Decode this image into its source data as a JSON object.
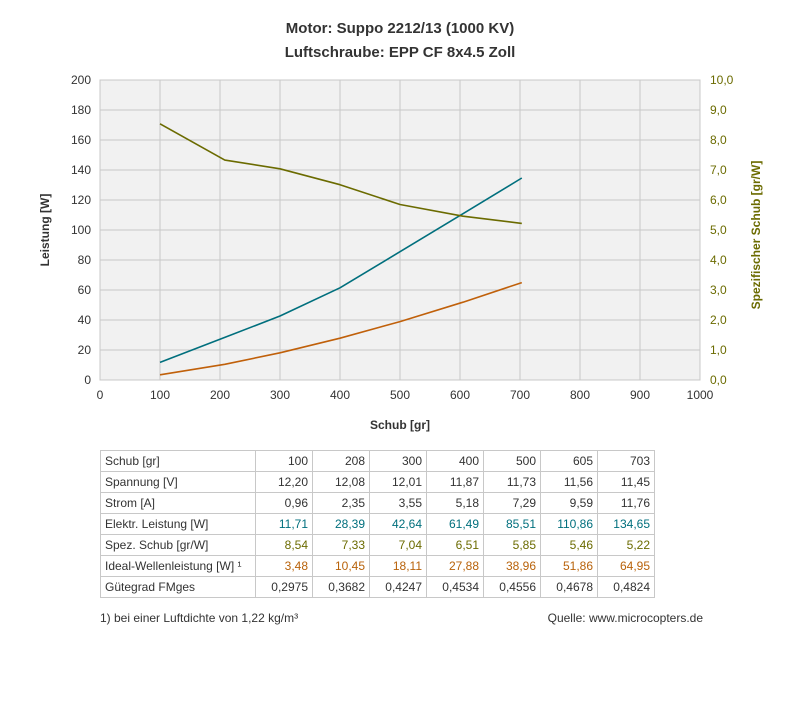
{
  "chart_data": {
    "type": "line",
    "title": "Motor: Suppo 2212/13 (1000 KV)",
    "subtitle": "Luftschraube: EPP CF 8x4.5 Zoll",
    "xlabel": "Schub [gr]",
    "ylabel_left": "Leistung [W]",
    "ylabel_right": "Spezifischer Schub [gr/W]",
    "xlim": [
      0,
      1000
    ],
    "ylim_left": [
      0,
      200
    ],
    "ylim_right": [
      0,
      10
    ],
    "grid": true,
    "x_ticks": [
      "0",
      "100",
      "200",
      "300",
      "400",
      "500",
      "600",
      "700",
      "800",
      "900",
      "1000"
    ],
    "y_ticks_left": [
      "0",
      "20",
      "40",
      "60",
      "80",
      "100",
      "120",
      "140",
      "160",
      "180",
      "200"
    ],
    "y_ticks_right": [
      "0,0",
      "1,0",
      "2,0",
      "3,0",
      "4,0",
      "5,0",
      "6,0",
      "7,0",
      "8,0",
      "9,0",
      "10,0"
    ],
    "colors": {
      "teal": "#006f7d",
      "olive": "#6b6b00",
      "orange": "#c0600a",
      "axis_right": "#6b6b00"
    },
    "series": [
      {
        "key": "elektr",
        "axis": "left",
        "color": "#006f7d",
        "x": [
          100,
          208,
          300,
          400,
          500,
          605,
          703
        ],
        "y": [
          11.71,
          28.39,
          42.64,
          61.49,
          85.51,
          110.86,
          134.65
        ]
      },
      {
        "key": "ideal",
        "axis": "left",
        "color": "#c0600a",
        "x": [
          100,
          208,
          300,
          400,
          500,
          605,
          703
        ],
        "y": [
          3.48,
          10.45,
          18.11,
          27.88,
          38.96,
          51.86,
          64.95
        ]
      },
      {
        "key": "spez",
        "axis": "right",
        "color": "#6b6b00",
        "x": [
          100,
          208,
          300,
          400,
          500,
          605,
          703
        ],
        "y": [
          8.54,
          7.33,
          7.04,
          6.51,
          5.85,
          5.46,
          5.22
        ]
      }
    ]
  },
  "table": {
    "rows": [
      {
        "label": "Schub [gr]",
        "style": "plain",
        "values": [
          "100",
          "208",
          "300",
          "400",
          "500",
          "605",
          "703"
        ]
      },
      {
        "label": "Spannung [V]",
        "style": "plain",
        "values": [
          "12,20",
          "12,08",
          "12,01",
          "11,87",
          "11,73",
          "11,56",
          "11,45"
        ]
      },
      {
        "label": "Strom [A]",
        "style": "plain",
        "values": [
          "0,96",
          "2,35",
          "3,55",
          "5,18",
          "7,29",
          "9,59",
          "11,76"
        ]
      },
      {
        "label": "Elektr. Leistung [W]",
        "style": "teal",
        "values": [
          "11,71",
          "28,39",
          "42,64",
          "61,49",
          "85,51",
          "110,86",
          "134,65"
        ]
      },
      {
        "label": "Spez. Schub [gr/W]",
        "style": "olive",
        "values": [
          "8,54",
          "7,33",
          "7,04",
          "6,51",
          "5,85",
          "5,46",
          "5,22"
        ]
      },
      {
        "label": "Ideal-Wellenleistung [W] ¹",
        "style": "orange",
        "values": [
          "3,48",
          "10,45",
          "18,11",
          "27,88",
          "38,96",
          "51,86",
          "64,95"
        ]
      },
      {
        "label": "Gütegrad FMges",
        "style": "plain",
        "values": [
          "0,2975",
          "0,3682",
          "0,4247",
          "0,4534",
          "0,4556",
          "0,4678",
          "0,4824"
        ]
      }
    ]
  },
  "footnote": "1) bei einer Luftdichte von 1,22 kg/m³",
  "source": "Quelle: www.microcopters.de"
}
